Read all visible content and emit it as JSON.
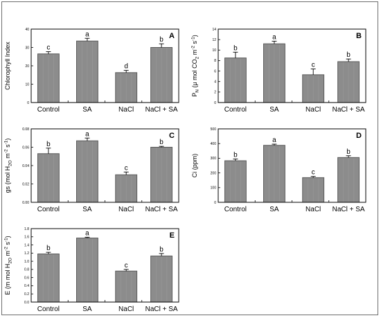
{
  "colors": {
    "bar": "#8c8c8c",
    "bar_line": "#5a5a5a",
    "frame": "#6e6e6e"
  },
  "chart_data": [
    {
      "type": "bar",
      "panel": "A",
      "categories": [
        "Control",
        "SA",
        "NaCl",
        "NaCl + SA"
      ],
      "values": [
        26.5,
        33.5,
        16.3,
        30.0
      ],
      "errors": [
        1.2,
        1.5,
        1.2,
        2.0
      ],
      "letters": [
        "c",
        "a",
        "d",
        "b"
      ],
      "ylabel": "Chlorophyll Index",
      "ylim": [
        0,
        40
      ],
      "yticks": [
        0,
        10,
        20,
        30,
        40
      ],
      "ytick_labels": [
        "0",
        "10",
        "20",
        "30",
        "40"
      ]
    },
    {
      "type": "bar",
      "panel": "B",
      "categories": [
        "Control",
        "SA",
        "NaCl",
        "NaCl + SA"
      ],
      "values": [
        8.5,
        11.2,
        5.3,
        7.8
      ],
      "errors": [
        1.1,
        0.5,
        1.1,
        0.5
      ],
      "letters": [
        "b",
        "a",
        "c",
        "b"
      ],
      "ylabel": "P_N (μ mol CO_2 m^-2 s^-1)",
      "ylim": [
        0,
        14
      ],
      "yticks": [
        0,
        2,
        4,
        6,
        8,
        10,
        12,
        14
      ],
      "ytick_labels": [
        "0",
        "2",
        "4",
        "6",
        "8",
        "10",
        "12",
        "14"
      ]
    },
    {
      "type": "bar",
      "panel": "C",
      "categories": [
        "Control",
        "SA",
        "NaCl",
        "NaCl + SA"
      ],
      "values": [
        0.053,
        0.067,
        0.03,
        0.06
      ],
      "errors": [
        0.006,
        0.003,
        0.003,
        0.001
      ],
      "letters": [
        "b",
        "a",
        "c",
        "b"
      ],
      "ylabel": "gs (mol H_2O m^-2 s^-1)",
      "ylim": [
        0,
        0.08
      ],
      "yticks": [
        0,
        0.02,
        0.04,
        0.06,
        0.08
      ],
      "ytick_labels": [
        "0.00",
        "0.02",
        "0.04",
        "0.06",
        "0.08"
      ]
    },
    {
      "type": "bar",
      "panel": "D",
      "categories": [
        "Control",
        "SA",
        "NaCl",
        "NaCl + SA"
      ],
      "values": [
        283,
        388,
        168,
        305
      ],
      "errors": [
        12,
        8,
        8,
        12
      ],
      "letters": [
        "b",
        "a",
        "c",
        "b"
      ],
      "ylabel": "Ci (ppm)",
      "ylim": [
        0,
        500
      ],
      "yticks": [
        0,
        100,
        200,
        300,
        400,
        500
      ],
      "ytick_labels": [
        "0",
        "100",
        "200",
        "300",
        "400",
        "500"
      ]
    },
    {
      "type": "bar",
      "panel": "E",
      "categories": [
        "Control",
        "SA",
        "NaCl",
        "NaCl + SA"
      ],
      "values": [
        1.18,
        1.57,
        0.76,
        1.13
      ],
      "errors": [
        0.04,
        0.02,
        0.04,
        0.06
      ],
      "letters": [
        "b",
        "a",
        "c",
        "b"
      ],
      "ylabel": "E (m mol H_2O m^-2 s^-1)",
      "ylim": [
        0,
        1.8
      ],
      "yticks": [
        0,
        0.2,
        0.4,
        0.6,
        0.8,
        1.0,
        1.2,
        1.4,
        1.6,
        1.8
      ],
      "ytick_labels": [
        "0.0",
        "0.2",
        "0.4",
        "0.6",
        "0.8",
        "1.0",
        "1.2",
        "1.4",
        "1.6",
        "1.8"
      ]
    }
  ]
}
